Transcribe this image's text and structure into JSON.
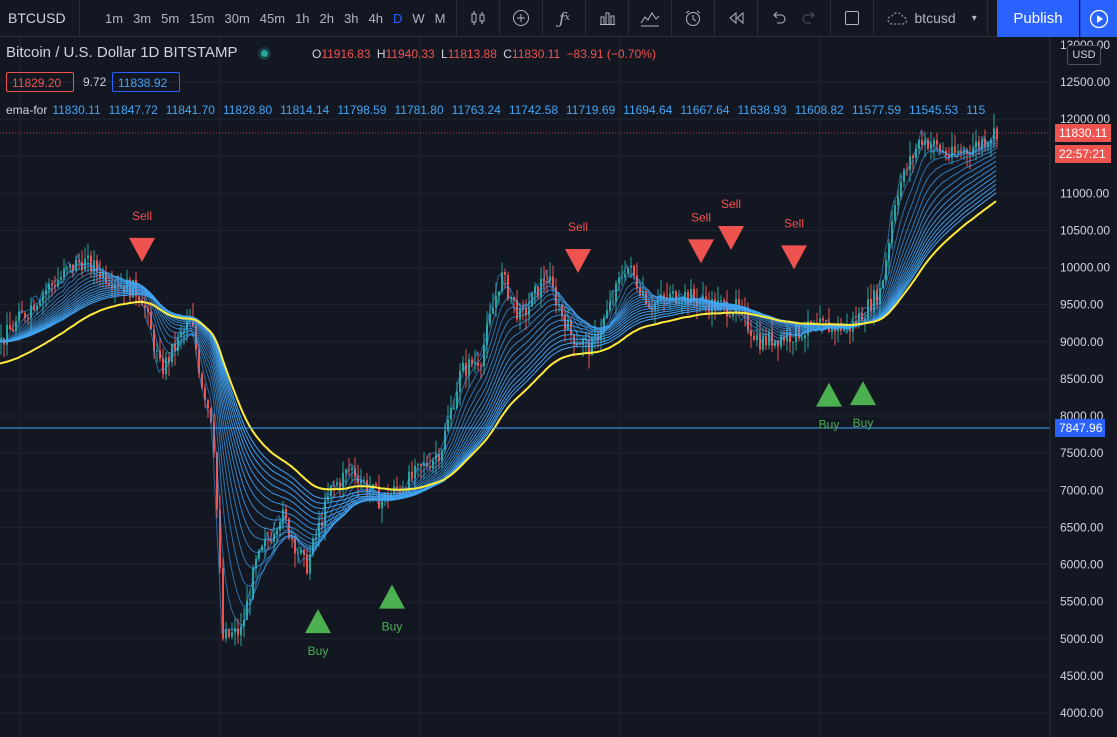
{
  "toolbar": {
    "symbol": "BTCUSD",
    "timeframes": [
      "1m",
      "3m",
      "5m",
      "15m",
      "30m",
      "45m",
      "1h",
      "2h",
      "3h",
      "4h",
      "D",
      "W",
      "M"
    ],
    "active_timeframe": "D",
    "save_label": "btcusd",
    "publish_label": "Publish"
  },
  "legend": {
    "title": "Bitcoin / U.S. Dollar  1D  BITSTAMP",
    "open_key": "O",
    "open": "11916.83",
    "high_key": "H",
    "high": "11940.33",
    "low_key": "L",
    "low": "11813.88",
    "close_key": "C",
    "close": "11830.11",
    "change": "−83.91 (−0.70%)",
    "bid": "11829.20",
    "spread": "9.72",
    "ask": "11838.92"
  },
  "indicator": {
    "name": "ema-for",
    "values": [
      "11830.11",
      "11847.72",
      "11841.70",
      "11828.80",
      "11814.14",
      "11798.59",
      "11781.80",
      "11763.24",
      "11742.58",
      "11719.69",
      "11694.64",
      "11667.64",
      "11638.93",
      "11608.82",
      "11577.59",
      "11545.53",
      "115"
    ]
  },
  "price_axis": {
    "currency": "USD",
    "last_price": "11830.11",
    "countdown": "22:57:21",
    "crosshair_price": "7847.96",
    "labels": [
      "12500.00",
      "12000.00",
      "11500.00",
      "11000.00",
      "10500.00",
      "10000.00",
      "9500.00",
      "9000.00",
      "8500.00",
      "8000.00",
      "7500.00",
      "7000.00",
      "6500.00",
      "6000.00",
      "5500.00",
      "5000.00",
      "4500.00",
      "4000.00"
    ],
    "top_partial": "13000.00"
  },
  "colors": {
    "bg": "#131722",
    "up": "#26a69a",
    "down": "#ef5350",
    "ema_band": "#42a5f5",
    "slow_ema": "#ffeb3b",
    "sell": "#ef5350",
    "buy": "#4caf50",
    "accent": "#2962ff"
  },
  "signals": [
    {
      "type": "Sell",
      "label": "Sell",
      "x": 142,
      "price": 10400
    },
    {
      "type": "Sell",
      "label": "Sell",
      "x": 578,
      "price": 10250
    },
    {
      "type": "Sell",
      "label": "Sell",
      "x": 701,
      "price": 10380
    },
    {
      "type": "Sell",
      "label": "Sell",
      "x": 731,
      "price": 10560
    },
    {
      "type": "Sell",
      "label": "Sell",
      "x": 794,
      "price": 10300
    },
    {
      "type": "Buy",
      "label": "Buy",
      "x": 318,
      "price": 5400
    },
    {
      "type": "Buy",
      "label": "Buy",
      "x": 392,
      "price": 5730
    },
    {
      "type": "Buy",
      "label": "Buy",
      "x": 829,
      "price": 8450
    },
    {
      "type": "Buy",
      "label": "Buy",
      "x": 863,
      "price": 8470
    }
  ]
}
